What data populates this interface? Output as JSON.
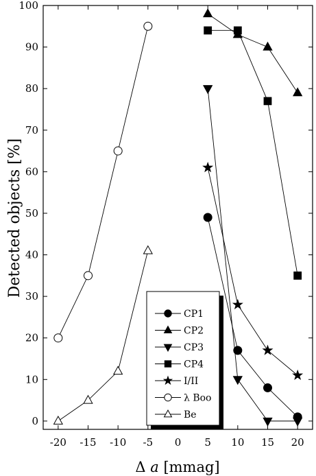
{
  "chart_data": {
    "type": "scatter",
    "xlabel_prefix": "Δ",
    "xlabel_var": "a",
    "xlabel_unit": "[mmag]",
    "ylabel": "Detected objects [%]",
    "xlim": [
      -22.5,
      22.5
    ],
    "ylim": [
      -2,
      100
    ],
    "x_ticks": [
      -20,
      -15,
      -10,
      -5,
      0,
      5,
      10,
      15,
      20
    ],
    "y_ticks": [
      0,
      10,
      20,
      30,
      40,
      50,
      60,
      70,
      80,
      90,
      100
    ],
    "legend_position": "bottom-center",
    "series": [
      {
        "name": "CP1",
        "marker": "circle-filled",
        "x": [
          5,
          10,
          15,
          20
        ],
        "y": [
          49,
          17,
          8,
          1
        ]
      },
      {
        "name": "CP2",
        "marker": "triangle-up-filled",
        "x": [
          5,
          10,
          15,
          20
        ],
        "y": [
          98,
          93,
          90,
          79
        ]
      },
      {
        "name": "CP3",
        "marker": "triangle-down-filled",
        "x": [
          5,
          10,
          15,
          20
        ],
        "y": [
          80,
          10,
          0,
          0
        ]
      },
      {
        "name": "CP4",
        "marker": "square-filled",
        "x": [
          5,
          10,
          15,
          20
        ],
        "y": [
          94,
          94,
          77,
          35
        ]
      },
      {
        "name": "I/II",
        "marker": "star-filled",
        "x": [
          5,
          10,
          15,
          20
        ],
        "y": [
          61,
          28,
          17,
          11
        ]
      },
      {
        "name": "λ Boo",
        "marker": "circle-open",
        "x": [
          -20,
          -15,
          -10,
          -5
        ],
        "y": [
          20,
          35,
          65,
          95
        ]
      },
      {
        "name": "Be",
        "marker": "triangle-up-open",
        "x": [
          -20,
          -15,
          -10,
          -5
        ],
        "y": [
          0,
          5,
          12,
          41
        ]
      }
    ]
  }
}
